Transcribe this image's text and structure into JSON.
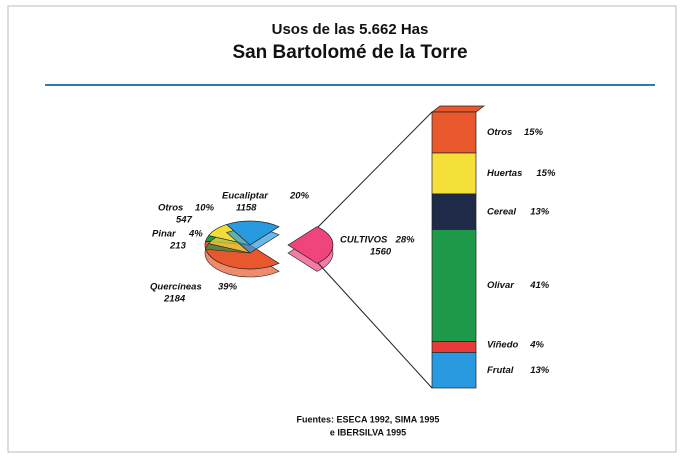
{
  "chart_data": {
    "type": "pie-of-bar",
    "title": "Usos de las 5.662 Has",
    "subtitle": "San Bartolomé de la Torre",
    "source": [
      "Fuentes: ESECA 1992, SIMA 1995",
      "e IBERSILVA 1995"
    ],
    "pie": {
      "categories": [
        "CULTIVOS",
        "Quercíneas",
        "Pinar",
        "Otros",
        "Eucaliptar"
      ],
      "values": [
        28,
        39,
        4,
        10,
        20
      ],
      "value_labels": [
        "28%",
        "39%",
        "4%",
        "10%",
        "20%"
      ],
      "counts": [
        1560,
        2184,
        213,
        547,
        1158
      ],
      "colors": [
        "#f0447c",
        "#e8582c",
        "#1f9a4a",
        "#f2dc3a",
        "#2a9ae0"
      ]
    },
    "bar": {
      "categories": [
        "Otros",
        "Huertas",
        "Cereal",
        "Olivar",
        "Viñedo",
        "Frutal"
      ],
      "values": [
        15,
        15,
        13,
        41,
        4,
        13
      ],
      "value_labels": [
        "15%",
        "15%",
        "13%",
        "41%",
        "4%",
        "13%"
      ],
      "colors": [
        "#e8582c",
        "#f5e03a",
        "#1e2a48",
        "#1f9a4a",
        "#e83a3a",
        "#2a9ae0"
      ]
    }
  }
}
